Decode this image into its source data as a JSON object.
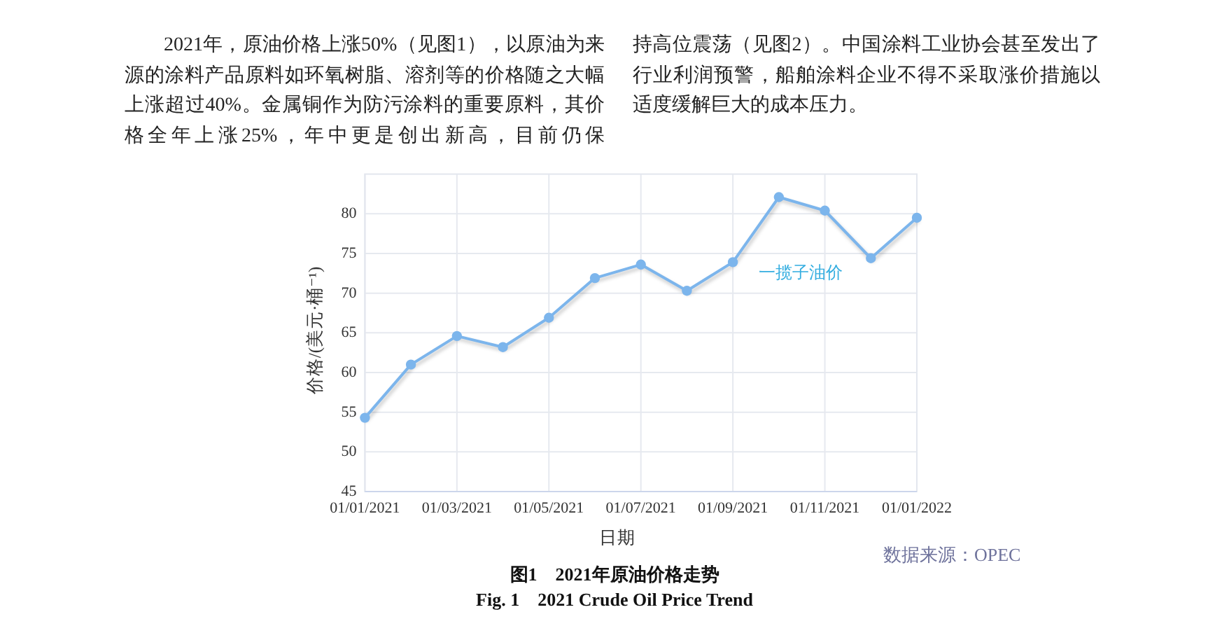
{
  "chart_data": {
    "type": "line",
    "xlabel": "日期",
    "ylabel": "价格/(美元·桶⁻¹)",
    "categories": [
      "01/01/2021",
      null,
      "01/03/2021",
      null,
      "01/05/2021",
      null,
      "01/07/2021",
      null,
      "01/09/2021",
      null,
      "01/11/2021",
      null,
      "01/01/2022"
    ],
    "series": [
      {
        "name": "一揽子油价",
        "color": "#7cb5ec",
        "values": [
          54.3,
          61.0,
          64.6,
          63.2,
          66.9,
          71.9,
          73.6,
          70.3,
          73.9,
          82.1,
          80.4,
          74.4,
          79.5
        ]
      }
    ],
    "ylim": [
      45,
      85
    ],
    "yticks": [
      45,
      50,
      55,
      60,
      65,
      70,
      75,
      80
    ],
    "grid": true,
    "marker": "circle",
    "annotations": [
      "2021年，原油价格上涨50%（见图1），以原油为来源的涂料产品原料如环氧树脂、溶剂等的价格随之大幅上涨超过40%。金属铜作为防污涂料的重要原料，其价格全年上涨25%，年中更是创出新高，目前仍保",
      "持高位震荡（见图2）。中国涂料工业协会甚至发出了行业利润预警，船舶涂料企业不得不采取涨价措施以适度缓解巨大的成本压力。",
      "数据来源：OPEC",
      "图1　2021年原油价格走势",
      "Fig. 1　2021 Crude Oil Price Trend"
    ]
  }
}
